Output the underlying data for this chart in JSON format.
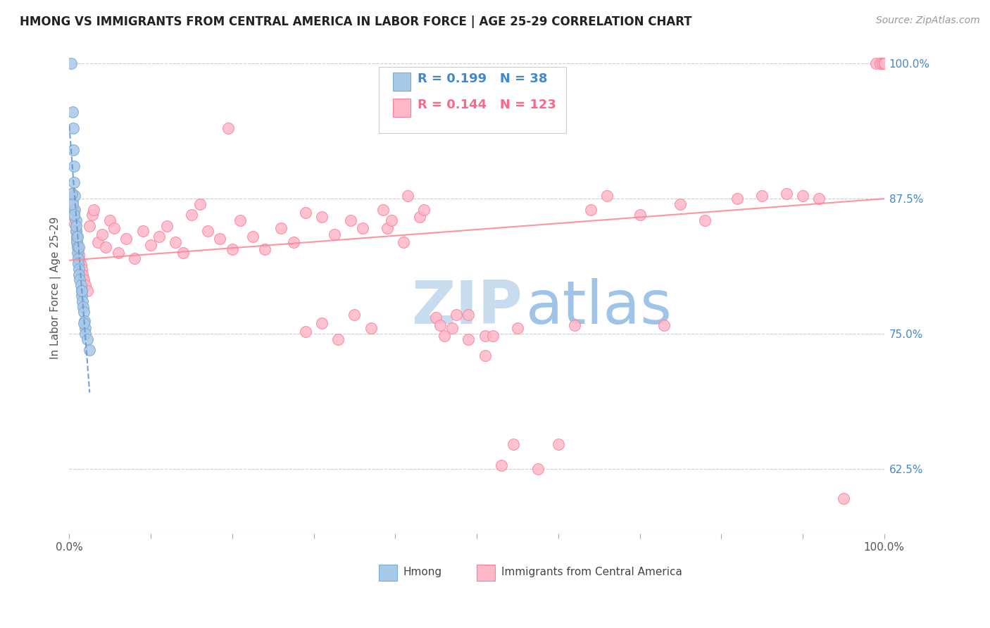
{
  "title": "HMONG VS IMMIGRANTS FROM CENTRAL AMERICA IN LABOR FORCE | AGE 25-29 CORRELATION CHART",
  "source": "Source: ZipAtlas.com",
  "ylabel": "In Labor Force | Age 25-29",
  "y_tick_labels_right": [
    "100.0%",
    "87.5%",
    "75.0%",
    "62.5%"
  ],
  "y_tick_positions_right": [
    1.0,
    0.875,
    0.75,
    0.625
  ],
  "legend_label1": "Hmong",
  "legend_label2": "Immigrants from Central America",
  "R1": 0.199,
  "N1": 38,
  "R2": 0.144,
  "N2": 123,
  "color_blue_fill": "#A8C8E8",
  "color_blue_edge": "#7AAAD0",
  "color_pink_fill": "#FFB8C8",
  "color_pink_edge": "#FF8099",
  "color_blue_text": "#4488CC",
  "color_pink_text": "#FF6688",
  "trend_color_blue": "#6699CC",
  "trend_color_pink": "#FF8899",
  "xlim": [
    0.0,
    1.0
  ],
  "ylim": [
    0.565,
    1.02
  ],
  "grid_color": "#CCCCCC",
  "watermark_color": "#C8DCF0",
  "title_fontsize": 12,
  "source_fontsize": 10
}
